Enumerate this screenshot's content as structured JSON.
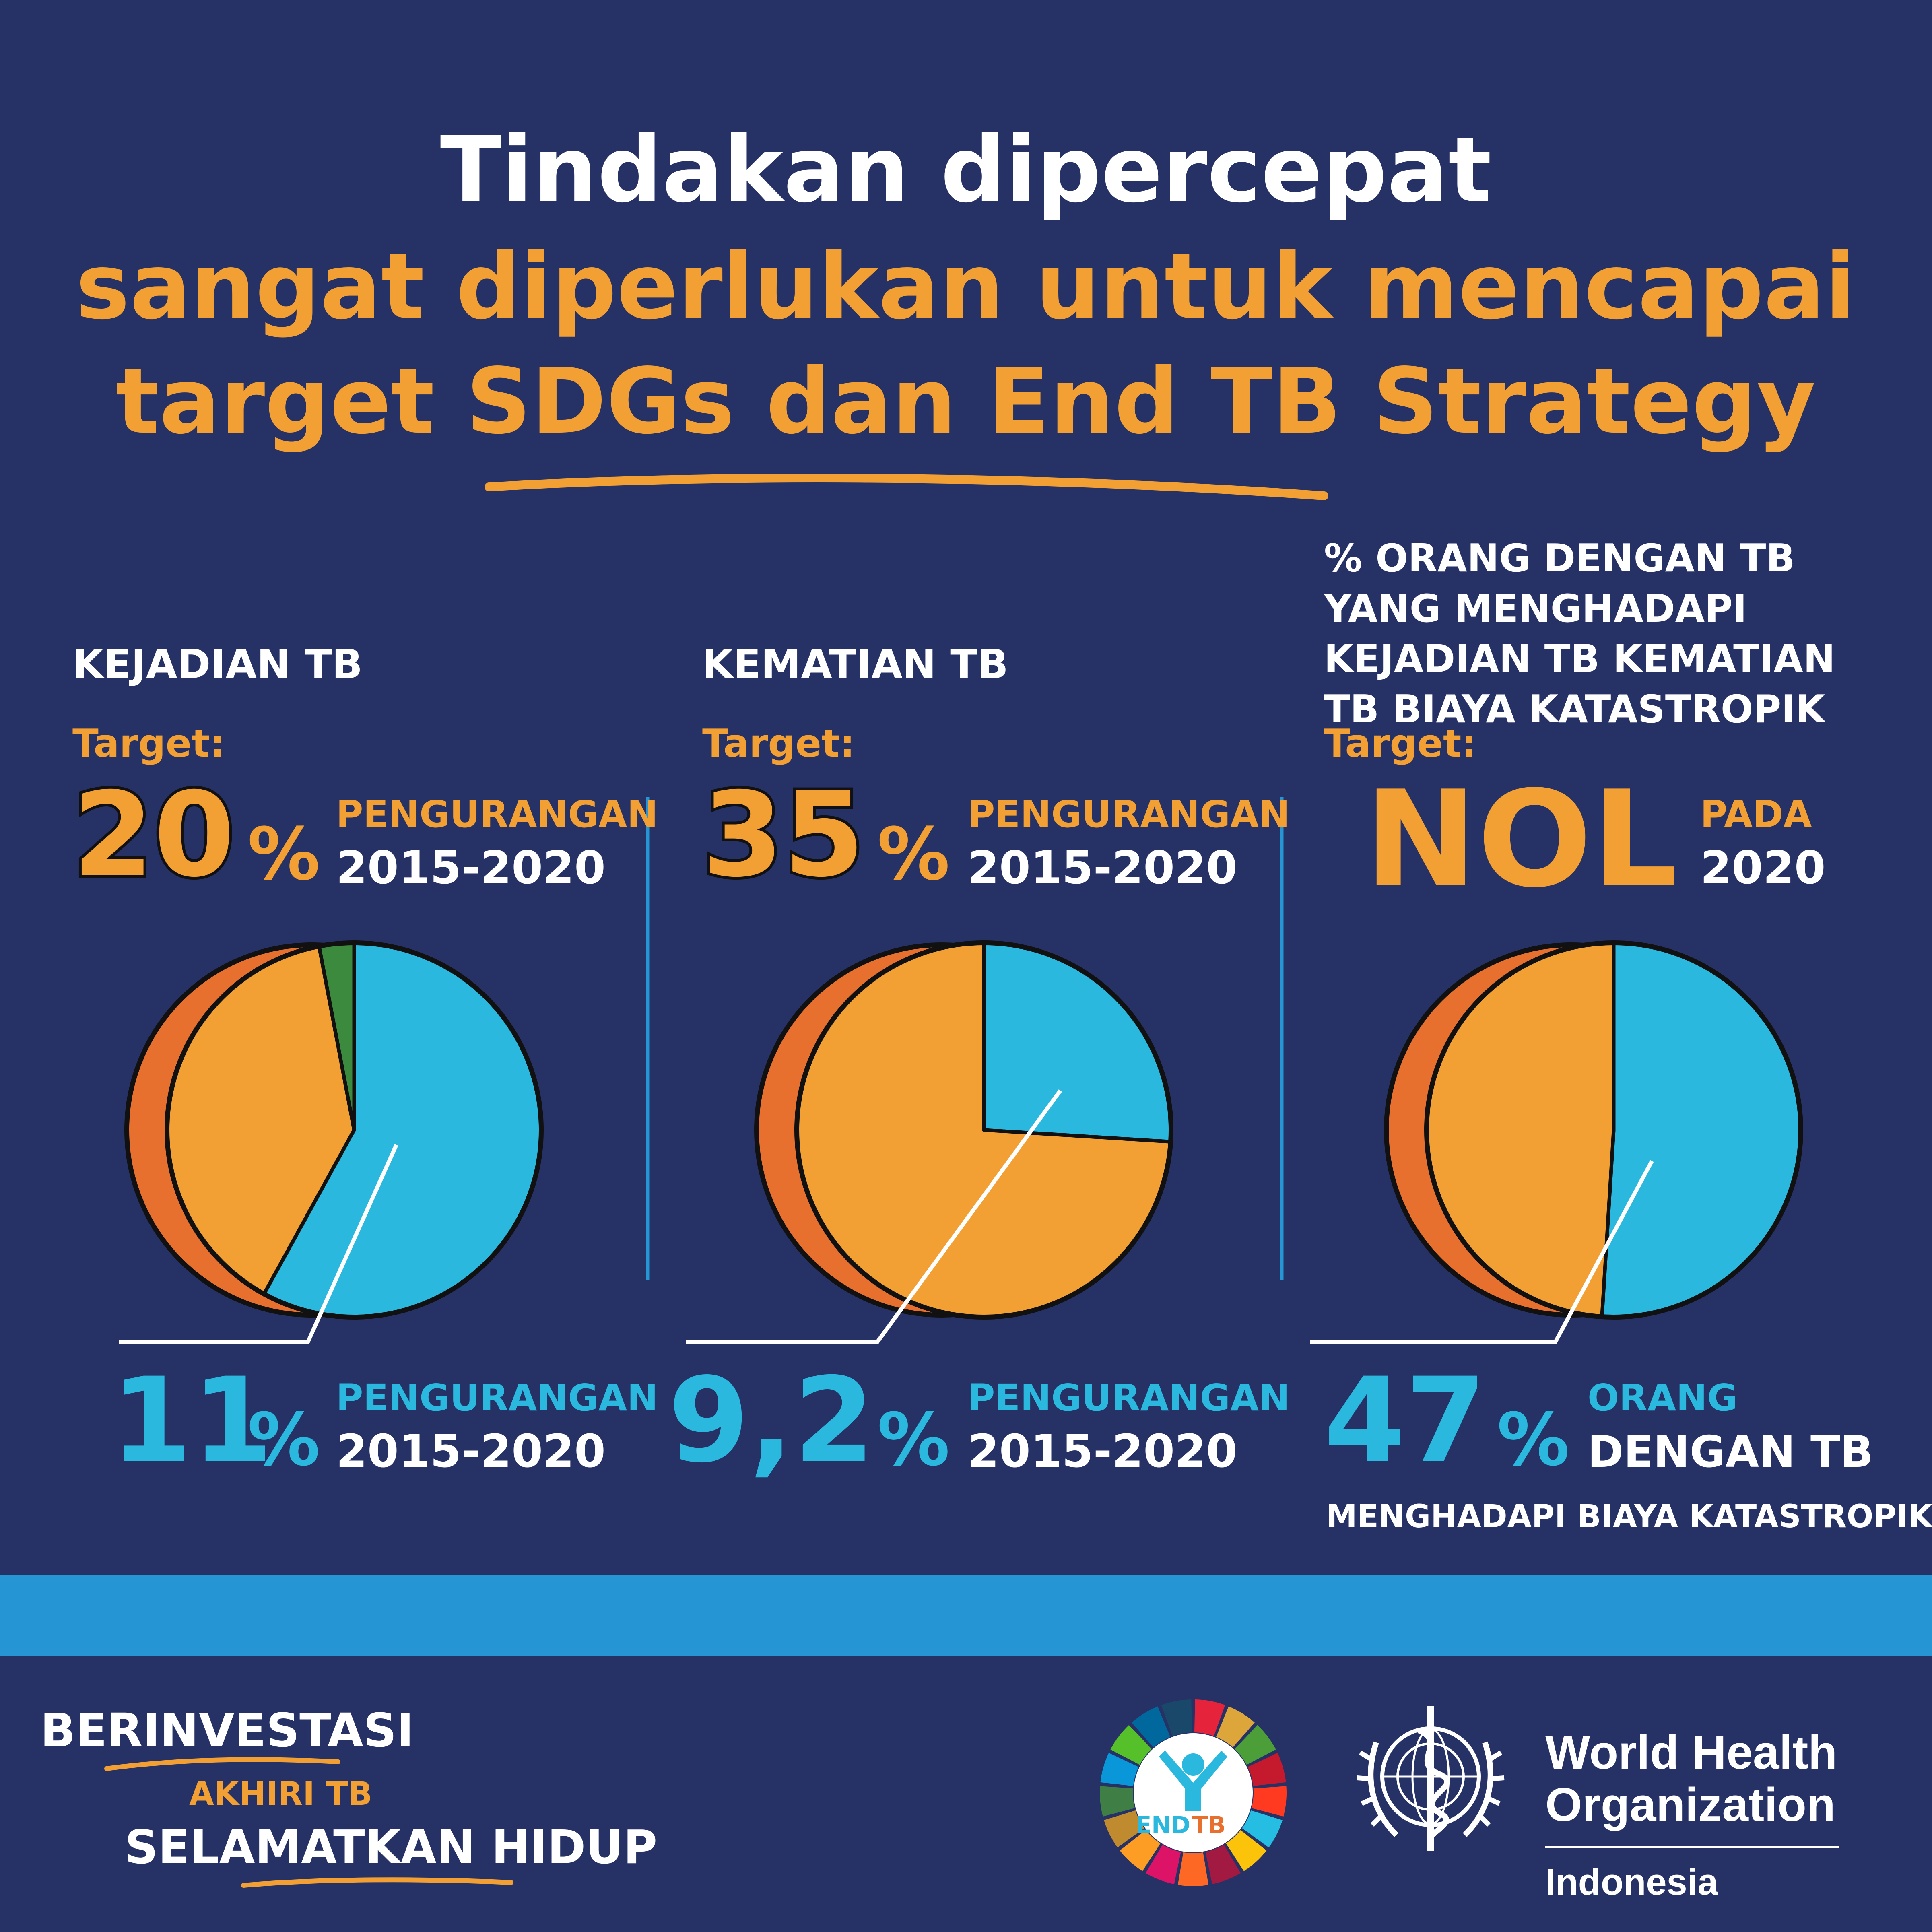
{
  "colors": {
    "background": "#263166",
    "white": "#FFFFFF",
    "orange": "#F29F33",
    "cyan": "#2BB8DE",
    "dark_orange": "#E8702F",
    "green": "#3C8A3D",
    "band": "#2595D4"
  },
  "title": {
    "line1": "Tindakan dipercepat",
    "line2": "sangat diperlukan untuk mencapai",
    "line3": "target SDGs dan End TB Strategy"
  },
  "panels": [
    {
      "heading_lines": [
        "KEJADIAN TB"
      ],
      "target_label": "Target:",
      "target_value": "20",
      "target_suffix": "%",
      "target_text_line1": "PENGURANGAN",
      "target_text_line2": "2015-2020",
      "result_value": "11",
      "result_suffix": "%",
      "result_text_line1": "PENGURANGAN",
      "result_text_line2": "2015-2020",
      "result_text_line3": ""
    },
    {
      "heading_lines": [
        "KEMATIAN TB"
      ],
      "target_label": "Target:",
      "target_value": "35",
      "target_suffix": "%",
      "target_text_line1": "PENGURANGAN",
      "target_text_line2": "2015-2020",
      "result_value": "9,2",
      "result_suffix": "%",
      "result_text_line1": "PENGURANGAN",
      "result_text_line2": "2015-2020",
      "result_text_line3": ""
    },
    {
      "heading_lines": [
        "% ORANG DENGAN TB",
        "YANG MENGHADAPI",
        "KEJADIAN TB KEMATIAN",
        "TB BIAYA KATASTROPIK"
      ],
      "target_label": "Target:",
      "target_value": "NOL",
      "target_suffix": "",
      "target_text_line1": "PADA",
      "target_text_line2": "2020",
      "result_value": "47",
      "result_suffix": "%",
      "result_text_line1": "ORANG",
      "result_text_line2": "DENGAN TB",
      "result_text_line3": "MENGHADAPI BIAYA KATASTROPIK"
    }
  ],
  "chart_data": [
    {
      "type": "pie",
      "title": "KEJADIAN TB",
      "slices": [
        {
          "value": 58,
          "color": "#2BB8DE"
        },
        {
          "value": 39,
          "color": "#F29F33"
        },
        {
          "value": 3,
          "color": "#3C8A3D"
        }
      ]
    },
    {
      "type": "pie",
      "title": "KEMATIAN TB",
      "slices": [
        {
          "value": 26,
          "color": "#2BB8DE"
        },
        {
          "value": 74,
          "color": "#F29F33"
        }
      ]
    },
    {
      "type": "pie",
      "title": "% ORANG DENGAN TB YANG MENGHADAPI KEJADIAN TB KEMATIAN TB BIAYA KATASTROPIK",
      "slices": [
        {
          "value": 51,
          "color": "#2BB8DE"
        },
        {
          "value": 49,
          "color": "#F29F33"
        }
      ]
    }
  ],
  "footer": {
    "slogan_line1": "BERINVESTASI",
    "slogan_line2": "AKHIRI TB",
    "slogan_line3": "SELAMATKAN HIDUP",
    "endtb_label_end": "END",
    "endtb_label_tb": "TB",
    "who_line1": "World Health",
    "who_line2": "Organization",
    "who_country": "Indonesia"
  }
}
